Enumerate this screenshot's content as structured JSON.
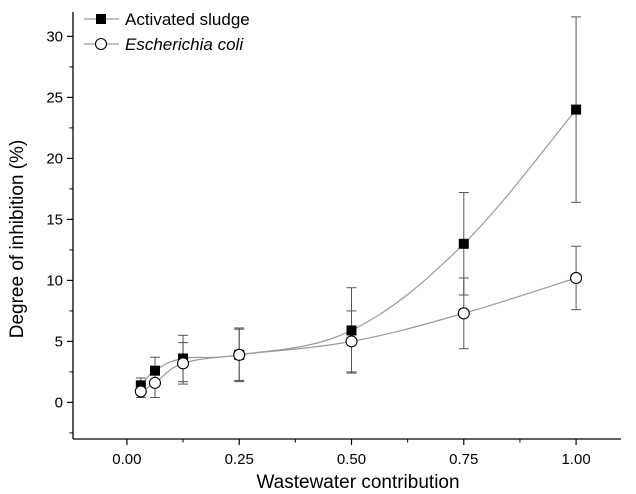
{
  "chart_data": {
    "type": "scatter",
    "xlabel": "Wastewater contribution",
    "ylabel": "Degree of inhibition (%)",
    "xlim": [
      -0.12,
      1.1
    ],
    "ylim": [
      -3,
      32
    ],
    "x_ticks": [
      0.0,
      0.25,
      0.5,
      0.75,
      1.0
    ],
    "x_tick_labels": [
      "0.00",
      "0.25",
      "0.50",
      "0.75",
      "1.00"
    ],
    "y_ticks": [
      0,
      5,
      10,
      15,
      20,
      25,
      30
    ],
    "y_tick_labels": [
      "0",
      "5",
      "10",
      "15",
      "20",
      "25",
      "30"
    ],
    "grid": false,
    "legend": "top-left",
    "series": [
      {
        "name": "Activated sludge",
        "marker": "filled-square",
        "color": "#000000",
        "line_color": "#9a9a9a",
        "x": [
          0.031,
          0.0625,
          0.125,
          0.25,
          0.5,
          0.75,
          1.0
        ],
        "y": [
          1.4,
          2.6,
          3.6,
          3.9,
          5.9,
          13.0,
          24.0
        ],
        "err": [
          0.6,
          1.1,
          1.9,
          2.1,
          3.5,
          4.2,
          7.6
        ]
      },
      {
        "name": "Escherichia coli",
        "marker": "open-circle",
        "color": "#000000",
        "line_color": "#9a9a9a",
        "x": [
          0.031,
          0.0625,
          0.125,
          0.25,
          0.5,
          0.75,
          1.0
        ],
        "y": [
          0.9,
          1.6,
          3.2,
          3.9,
          5.0,
          7.3,
          10.2
        ],
        "err": [
          0.5,
          1.2,
          1.7,
          2.2,
          2.5,
          2.9,
          2.6
        ]
      }
    ]
  }
}
